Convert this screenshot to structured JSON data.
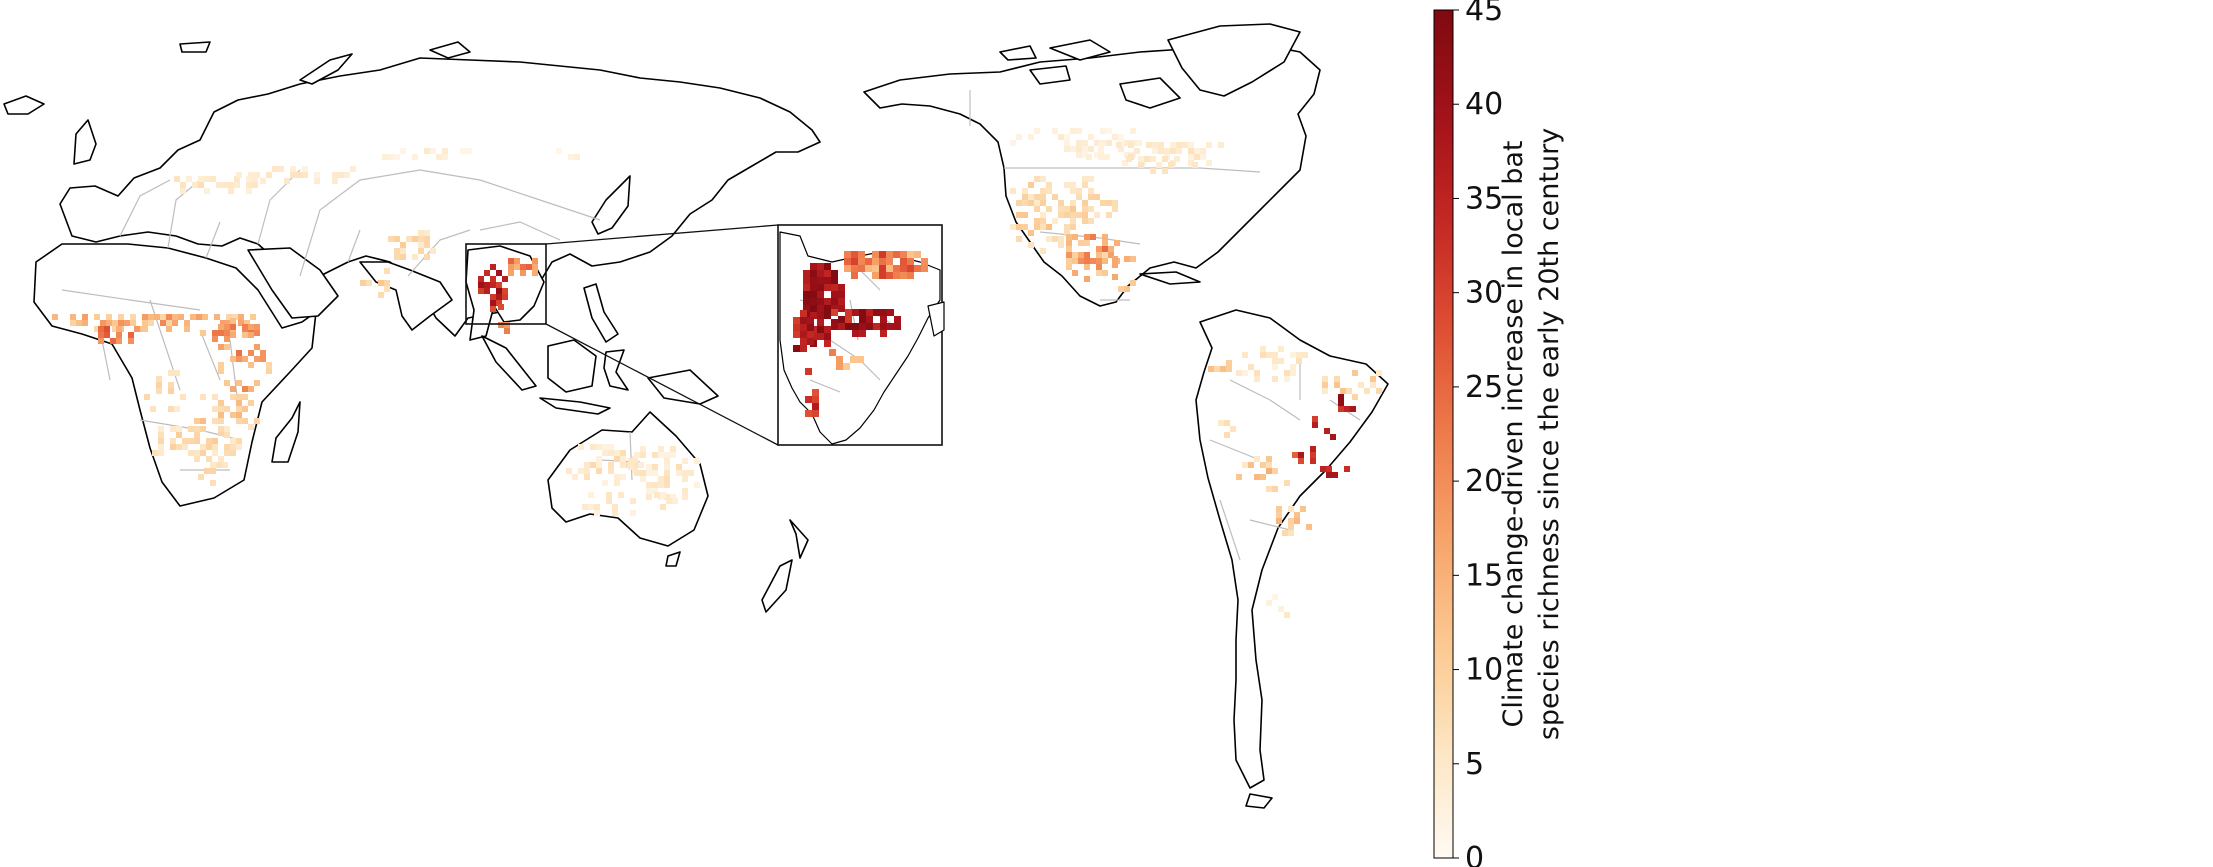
{
  "colorbar": {
    "label_line1": "Climate change-driven increase in local bat",
    "label_line2": "species richness since the early 20th century",
    "min": 0,
    "max": 45,
    "ticks": [
      "0",
      "5",
      "10",
      "15",
      "20",
      "25",
      "30",
      "35",
      "40",
      "45"
    ],
    "colors": [
      "#fffaf3",
      "#fde6c3",
      "#fbc992",
      "#f7a46b",
      "#ee7b4b",
      "#de4e33",
      "#c42823",
      "#a3121a",
      "#7f0a10"
    ]
  },
  "inset": {
    "region": "Southeast Asia (Myanmar / Thailand / Laos / Vietnam)"
  }
}
